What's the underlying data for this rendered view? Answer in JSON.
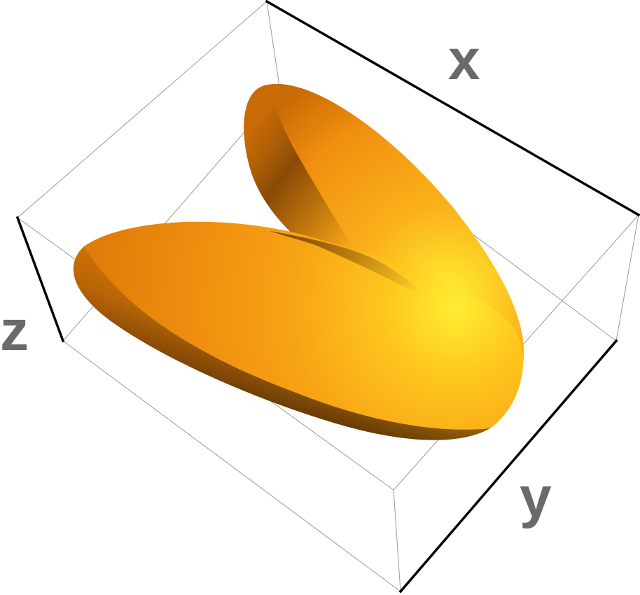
{
  "axes": {
    "x_label": "x",
    "y_label": "y",
    "z_label": "z"
  },
  "colors": {
    "surface_highlight": "#ffee33",
    "surface_mid": "#fbb11a",
    "surface_base": "#f08f10",
    "surface_shadow": "#4a2200",
    "box_edge_thin": "#999999",
    "box_edge_bold": "#000000",
    "label_color": "#6a6a6a"
  }
}
